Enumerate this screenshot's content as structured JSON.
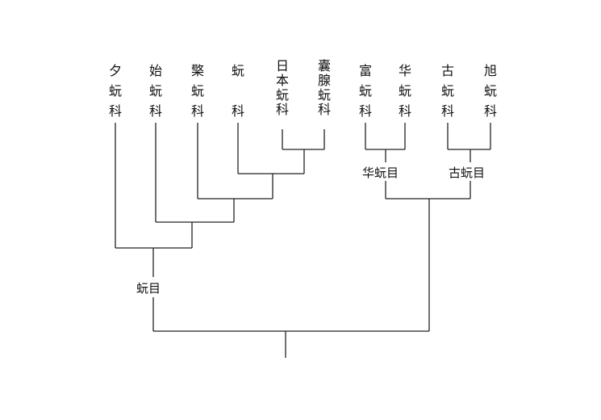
{
  "tree": {
    "root_label": "蚖目",
    "leaves": [
      {
        "id": "xi",
        "lines": [
          "夕",
          "蚖",
          "科"
        ]
      },
      {
        "id": "shi",
        "lines": [
          "始",
          "蚖",
          "科"
        ]
      },
      {
        "id": "gong",
        "lines": [
          "檠",
          "蚖",
          "科"
        ]
      },
      {
        "id": "yuan",
        "lines": [
          "蚖",
          "",
          "科"
        ]
      },
      {
        "id": "riben",
        "lines": [
          "日",
          "本",
          "蚖",
          "科"
        ]
      },
      {
        "id": "nang",
        "lines": [
          "囊",
          "腺",
          "蚖",
          "科"
        ]
      },
      {
        "id": "fu",
        "lines": [
          "富",
          "蚖",
          "科"
        ]
      },
      {
        "id": "hua",
        "lines": [
          "华",
          "蚖",
          "科"
        ]
      },
      {
        "id": "gu",
        "lines": [
          "古",
          "蚖",
          "科"
        ]
      },
      {
        "id": "xu",
        "lines": [
          "旭",
          "蚖",
          "科"
        ]
      }
    ],
    "clades": [
      {
        "id": "hua-order",
        "label": "华蚖目"
      },
      {
        "id": "gu-order",
        "label": "古蚖目"
      }
    ]
  }
}
